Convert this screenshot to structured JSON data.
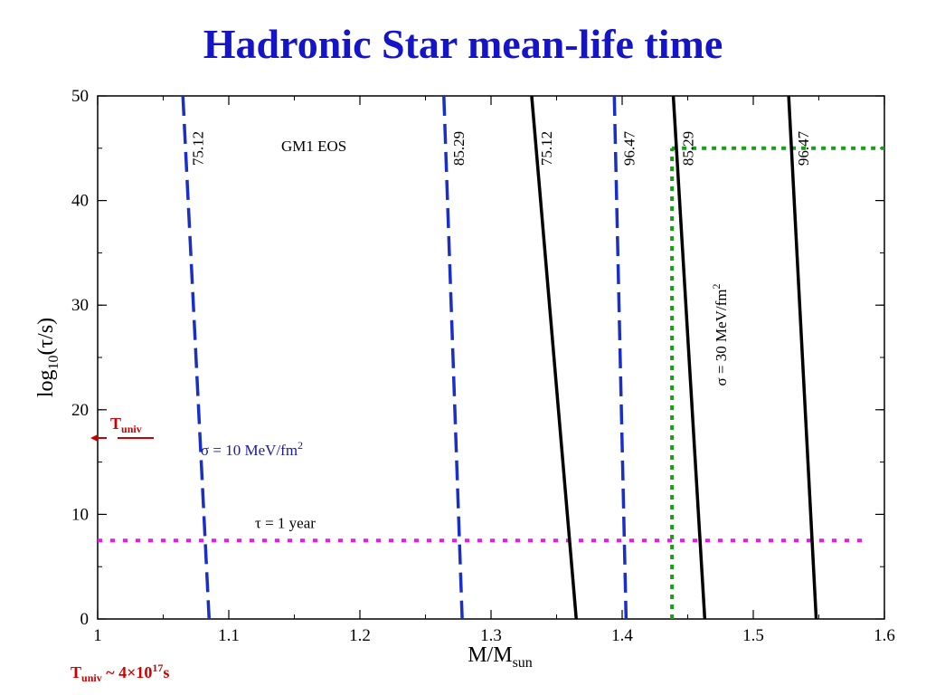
{
  "title": "Hadronic Star mean-life time",
  "chart_data": {
    "type": "line",
    "xlim": [
      1,
      1.6
    ],
    "ylim": [
      0,
      50
    ],
    "xticks": [
      1,
      1.1,
      1.2,
      1.3,
      1.4,
      1.5,
      1.6
    ],
    "xtick_labels": [
      "1",
      "1.1",
      "1.2",
      "1.3",
      "1.4",
      "1.5",
      "1.6"
    ],
    "yticks": [
      0,
      10,
      20,
      30,
      40,
      50
    ],
    "ytick_labels": [
      "0",
      "10",
      "20",
      "30",
      "40",
      "50"
    ],
    "ylabel": {
      "main": "log",
      "sub": "10",
      "rest": "(τ/s)"
    },
    "xlabel": {
      "main": "M/M",
      "sub": "sun"
    },
    "annotation_eos": "GM1 EOS",
    "sigma10": {
      "label": "σ = 10 MeV/fm",
      "sup": "2",
      "color": "#1a2fc8"
    },
    "sigma30": {
      "label": "σ = 30 MeV/fm",
      "sup": "2",
      "color": "#000000"
    },
    "series": [
      {
        "name": "75.12",
        "group": "sigma10",
        "style": "dashed",
        "color": "#1a2fc8",
        "x": [
          1.065,
          1.085
        ],
        "y": [
          50,
          0
        ]
      },
      {
        "name": "85.29",
        "group": "sigma10",
        "style": "dashed",
        "color": "#1a2fc8",
        "x": [
          1.264,
          1.278
        ],
        "y": [
          50,
          0
        ]
      },
      {
        "name": "96.47",
        "group": "sigma10",
        "style": "dashed",
        "color": "#1a2fc8",
        "x": [
          1.394,
          1.403
        ],
        "y": [
          50,
          0
        ]
      },
      {
        "name": "75.12",
        "group": "sigma30",
        "style": "solid",
        "color": "#000000",
        "x": [
          1.331,
          1.365
        ],
        "y": [
          50,
          0
        ]
      },
      {
        "name": "85.29",
        "group": "sigma30",
        "style": "solid",
        "color": "#000000",
        "x": [
          1.439,
          1.463
        ],
        "y": [
          50,
          0
        ]
      },
      {
        "name": "96.47",
        "group": "sigma30",
        "style": "solid",
        "color": "#000000",
        "x": [
          1.527,
          1.548
        ],
        "y": [
          50,
          0
        ]
      }
    ],
    "one_year": {
      "label": "τ = 1 year",
      "y": 7.5,
      "color": "#e020e0"
    },
    "green_lines": {
      "x": 1.438,
      "y": 45,
      "color": "#17a017"
    },
    "t_univ": {
      "label_main": "T",
      "label_sub": "univ",
      "y": 17.3,
      "color": "#cc0000",
      "note_main": "T",
      "note_sub": "univ",
      "note_rest": " ~ 4×10",
      "note_sup": "17",
      "note_unit": "s"
    }
  }
}
